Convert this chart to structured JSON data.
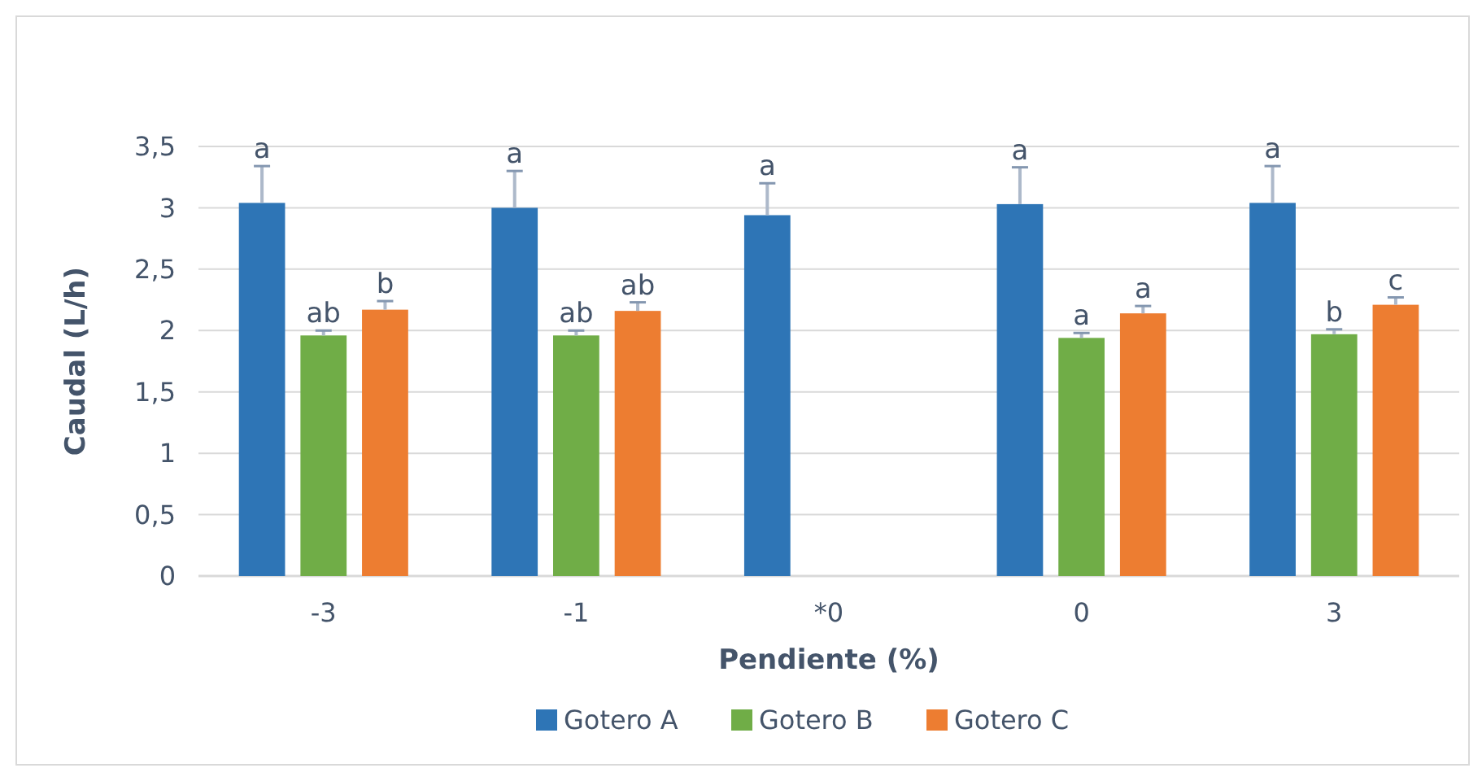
{
  "chart_data": {
    "type": "bar",
    "xlabel": "Pendiente (%)",
    "ylabel": "Caudal (L/h)",
    "categories": [
      "-3",
      "-1",
      "*0",
      "0",
      "3"
    ],
    "series": [
      {
        "name": "Gotero A",
        "color": "#2e75b6",
        "values": [
          3.04,
          3.0,
          2.94,
          3.03,
          3.04
        ],
        "errors": [
          [
            3.04,
            3.34
          ],
          [
            3.0,
            3.3
          ],
          [
            2.94,
            3.2
          ],
          [
            3.03,
            3.33
          ],
          [
            3.04,
            3.34
          ]
        ],
        "value_labels": [
          "a",
          "a",
          "a",
          "a",
          "a"
        ]
      },
      {
        "name": "Gotero B",
        "color": "#70ad47",
        "values": [
          1.96,
          1.96,
          0,
          1.94,
          1.97
        ],
        "errors": [
          [
            1.96,
            2.0
          ],
          [
            1.96,
            2.0
          ],
          null,
          [
            1.94,
            1.98
          ],
          [
            1.97,
            2.01
          ]
        ],
        "value_labels": [
          "ab",
          "ab",
          null,
          "a",
          "b"
        ]
      },
      {
        "name": "Gotero C",
        "color": "#ed7d31",
        "values": [
          2.17,
          2.16,
          0,
          2.14,
          2.21
        ],
        "errors": [
          [
            2.17,
            2.24
          ],
          [
            2.16,
            2.23
          ],
          null,
          [
            2.14,
            2.2
          ],
          [
            2.21,
            2.27
          ]
        ],
        "value_labels": [
          "b",
          "ab",
          null,
          "a",
          "c"
        ]
      }
    ],
    "ylim": [
      0,
      3.5
    ],
    "yticks": [
      0,
      {
        "value": 0.5,
        "label": "0,5"
      },
      1,
      {
        "value": 1.5,
        "label": "1,5"
      },
      2,
      {
        "value": 2.5,
        "label": "2,5"
      },
      3,
      {
        "value": 3.5,
        "label": "3,5"
      }
    ],
    "grid": "y",
    "legend": "bottom"
  }
}
